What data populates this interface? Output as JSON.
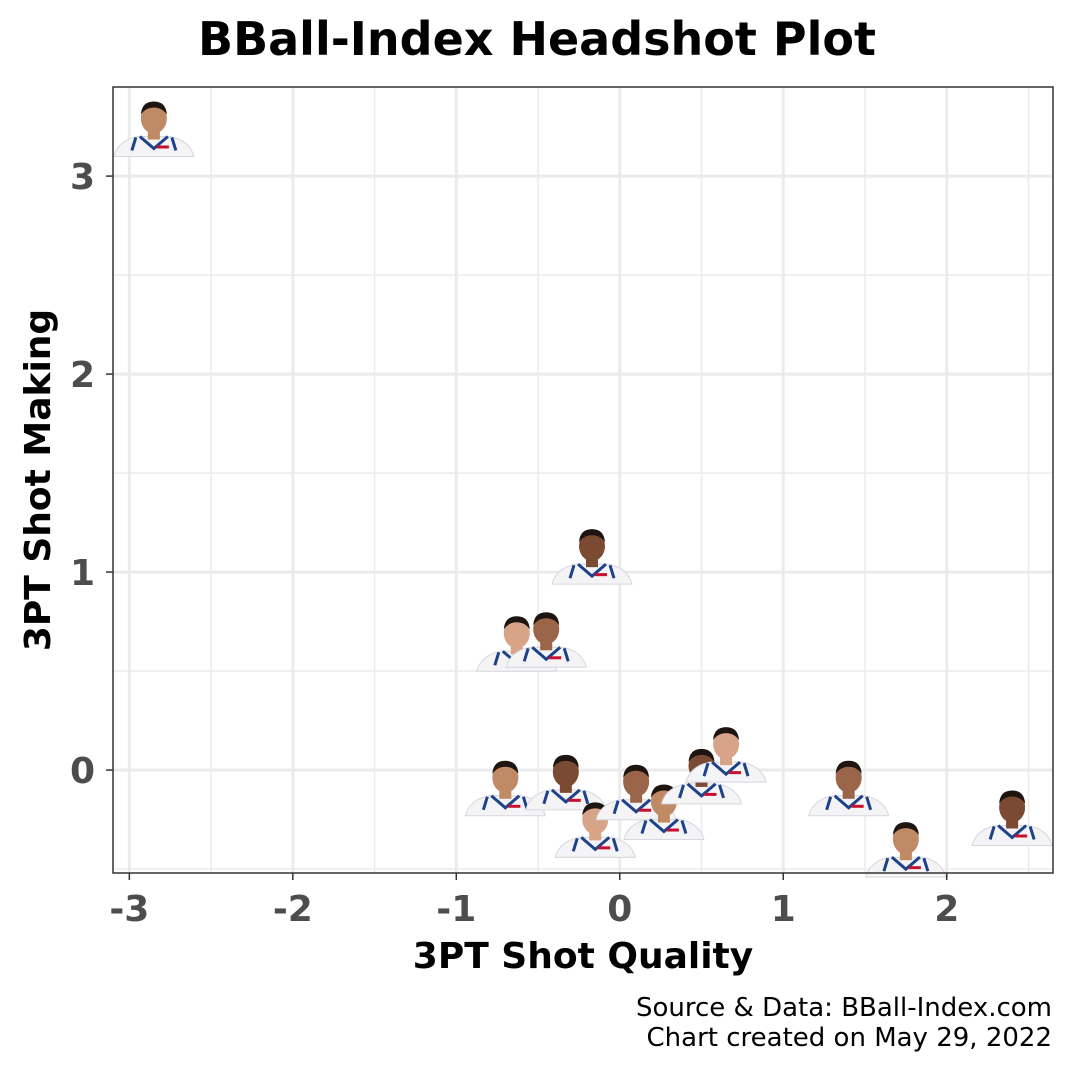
{
  "chart_data": {
    "type": "scatter",
    "title": "BBall-Index Headshot Plot",
    "xlabel": "3PT Shot Quality",
    "ylabel": "3PT Shot Making",
    "xlim": [
      -3.1,
      2.65
    ],
    "ylim": [
      -0.52,
      3.45
    ],
    "x_ticks": [
      -3,
      -2,
      -1,
      0,
      1,
      2
    ],
    "y_ticks": [
      0,
      1,
      2,
      3
    ],
    "x_tick_labels": [
      "-3",
      "-2",
      "-1",
      "0",
      "1",
      "2"
    ],
    "y_tick_labels": [
      "0",
      "1",
      "2",
      "3"
    ],
    "grid": true,
    "marker": "player headshot",
    "points": [
      {
        "x": -2.85,
        "y": 3.2
      },
      {
        "x": -0.17,
        "y": 1.04
      },
      {
        "x": -0.63,
        "y": 0.6
      },
      {
        "x": -0.45,
        "y": 0.62
      },
      {
        "x": -0.7,
        "y": -0.13
      },
      {
        "x": -0.33,
        "y": -0.1
      },
      {
        "x": -0.15,
        "y": -0.34
      },
      {
        "x": 0.1,
        "y": -0.15
      },
      {
        "x": 0.27,
        "y": -0.25
      },
      {
        "x": 0.5,
        "y": -0.07
      },
      {
        "x": 0.65,
        "y": 0.04
      },
      {
        "x": 1.4,
        "y": -0.13
      },
      {
        "x": 1.75,
        "y": -0.44
      },
      {
        "x": 2.4,
        "y": -0.28
      }
    ]
  },
  "source_line_1": "Source & Data: BBall-Index.com",
  "source_line_2": "Chart created on May 29, 2022",
  "colors": {
    "panel_border": "#333333",
    "grid": "#ebebeb",
    "jersey": "#f4f4f6",
    "jersey_trim": "#1d428a",
    "skin_tones": [
      "#c08a66",
      "#7b4a32",
      "#d8a487",
      "#9a6548"
    ]
  }
}
